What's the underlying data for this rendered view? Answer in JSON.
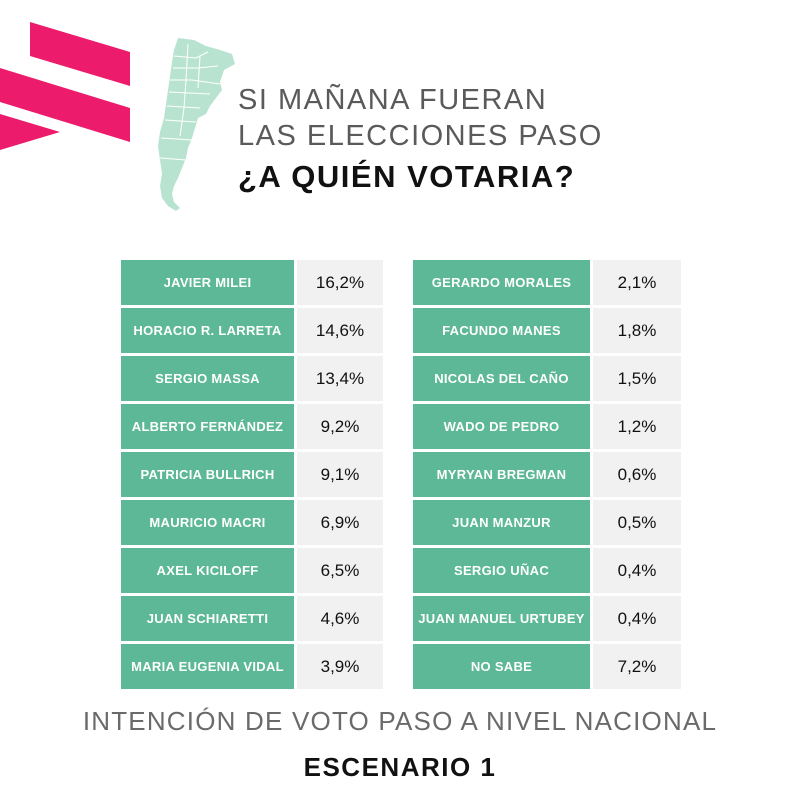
{
  "header": {
    "line1": "SI MAÑANA FUERAN",
    "line2": "LAS ELECCIONES PASO",
    "question": "¿A QUIÉN VOTARIA?"
  },
  "footer": {
    "subtitle": "INTENCIÓN DE VOTO PASO A NIVEL NACIONAL",
    "scenario": "ESCENARIO 1"
  },
  "colors": {
    "accent_pink": "#ec1b6b",
    "table_green": "#5cb896",
    "map_green": "#b9e3d1",
    "value_bg": "#f1f1f1"
  },
  "chart_data": {
    "type": "table",
    "title": "¿A QUIÉN VOTARIA?",
    "columns": [
      {
        "rows": [
          {
            "name": "JAVIER MILEI",
            "value": "16,2%"
          },
          {
            "name": "HORACIO R. LARRETA",
            "value": "14,6%"
          },
          {
            "name": "SERGIO MASSA",
            "value": "13,4%"
          },
          {
            "name": "ALBERTO FERNÁNDEZ",
            "value": "9,2%"
          },
          {
            "name": "PATRICIA BULLRICH",
            "value": "9,1%"
          },
          {
            "name": "MAURICIO MACRI",
            "value": "6,9%"
          },
          {
            "name": "AXEL KICILOFF",
            "value": "6,5%"
          },
          {
            "name": "JUAN SCHIARETTI",
            "value": "4,6%"
          },
          {
            "name": "MARIA EUGENIA VIDAL",
            "value": "3,9%"
          }
        ]
      },
      {
        "rows": [
          {
            "name": "GERARDO MORALES",
            "value": "2,1%"
          },
          {
            "name": "FACUNDO MANES",
            "value": "1,8%"
          },
          {
            "name": "NICOLAS DEL CAÑO",
            "value": "1,5%"
          },
          {
            "name": "WADO DE PEDRO",
            "value": "1,2%"
          },
          {
            "name": "MYRYAN BREGMAN",
            "value": "0,6%"
          },
          {
            "name": "JUAN MANZUR",
            "value": "0,5%"
          },
          {
            "name": "SERGIO UÑAC",
            "value": "0,4%"
          },
          {
            "name": "JUAN MANUEL URTUBEY",
            "value": "0,4%"
          },
          {
            "name": "NO SABE",
            "value": "7,2%"
          }
        ]
      }
    ]
  }
}
